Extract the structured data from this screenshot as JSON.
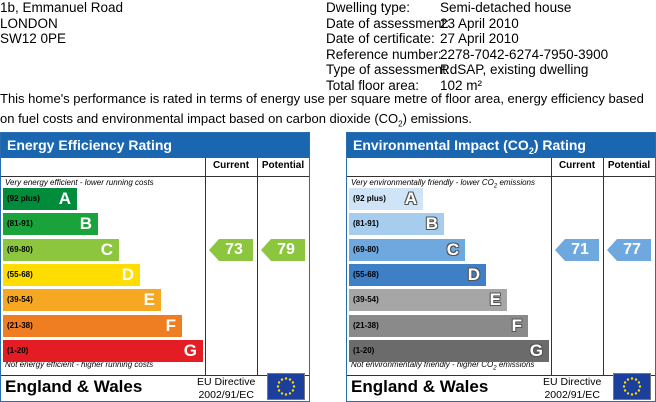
{
  "address": [
    "1b, Emmanuel Road",
    "LONDON",
    "SW12 0PE"
  ],
  "details": [
    {
      "label": "Dwelling type:",
      "value": "Semi-detached house"
    },
    {
      "label": "Date of assessment:",
      "value": "23 April 2010"
    },
    {
      "label": "Date of certificate:",
      "value": "27 April 2010"
    },
    {
      "label": "Reference number:",
      "value": "2278-7042-6274-7950-3900"
    },
    {
      "label": "Type of assessment:",
      "value": "RdSAP, existing dwelling"
    },
    {
      "label": "Total floor area:",
      "value": "102 m²"
    }
  ],
  "intro": {
    "before": "This home's performance is rated in terms of energy use per square metre of floor area, energy efficiency based on fuel costs and environmental impact based on carbon dioxide (CO",
    "sub": "2",
    "after": ") emissions."
  },
  "energy": {
    "title": "Energy Efficiency Rating",
    "current_label": "Current",
    "potential_label": "Potential",
    "top_caption": "Very energy efficient - lower running costs",
    "bottom_caption": "Not energy efficient - higher running costs",
    "bands": [
      {
        "range": "(92 plus)",
        "letter": "A",
        "color": "#008c3a"
      },
      {
        "range": "(81-91)",
        "letter": "B",
        "color": "#1aa33a"
      },
      {
        "range": "(69-80)",
        "letter": "C",
        "color": "#8cc63f"
      },
      {
        "range": "(55-68)",
        "letter": "D",
        "color": "#ffdd00"
      },
      {
        "range": "(39-54)",
        "letter": "E",
        "color": "#f7a823"
      },
      {
        "range": "(21-38)",
        "letter": "F",
        "color": "#ef7d22"
      },
      {
        "range": "(1-20)",
        "letter": "G",
        "color": "#e31d23"
      }
    ],
    "current": "73",
    "potential": "79",
    "arrow_color": "#8cc63f",
    "footer": "England & Wales",
    "eu_line1": "EU Directive",
    "eu_line2": "2002/91/EC"
  },
  "environment": {
    "title_before": "Environmental Impact (CO",
    "title_sub": "2",
    "title_after": ") Rating",
    "current_label": "Current",
    "potential_label": "Potential",
    "top_caption_before": "Very environmentally friendly - lower CO",
    "top_caption_sub": "2",
    "top_caption_after": " emissions",
    "bottom_caption_before": "Not environmentally friendly - higher CO",
    "bottom_caption_sub": "2",
    "bottom_caption_after": " emissions",
    "bands": [
      {
        "range": "(92 plus)",
        "letter": "A",
        "color": "#cfe4f6"
      },
      {
        "range": "(81-91)",
        "letter": "B",
        "color": "#a6cdee"
      },
      {
        "range": "(69-80)",
        "letter": "C",
        "color": "#6fa8de"
      },
      {
        "range": "(55-68)",
        "letter": "D",
        "color": "#3f7fc6"
      },
      {
        "range": "(39-54)",
        "letter": "E",
        "color": "#a6a6a6"
      },
      {
        "range": "(21-38)",
        "letter": "F",
        "color": "#8a8a8a"
      },
      {
        "range": "(1-20)",
        "letter": "G",
        "color": "#6b6b6b"
      }
    ],
    "current": "71",
    "potential": "77",
    "arrow_color": "#6fa8de",
    "footer": "England & Wales",
    "eu_line1": "EU Directive",
    "eu_line2": "2002/91/EC"
  }
}
